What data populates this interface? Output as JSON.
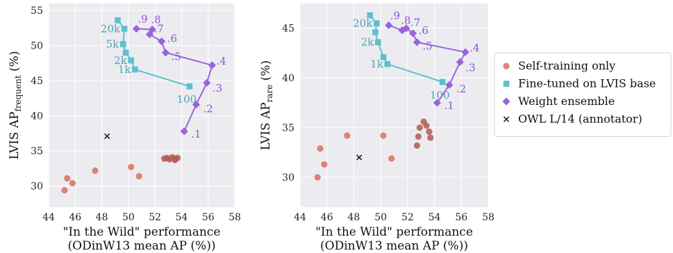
{
  "chart_data": [
    {
      "type": "scatter",
      "xlabel_lines": [
        "\"In the Wild\" performance",
        "(ODinW13 mean AP (%))"
      ],
      "ylabel": "LVIS AP",
      "ylabel_sub": "frequent",
      "ylabel_suffix": " (%)",
      "xlim": [
        44,
        58
      ],
      "ylim": [
        27,
        56
      ],
      "xticks": [
        44,
        46,
        48,
        50,
        52,
        54,
        56,
        58
      ],
      "yticks": [
        30,
        35,
        40,
        45,
        50,
        55
      ],
      "grid": true,
      "series": [
        {
          "name": "Self-training only",
          "marker": "circle",
          "color": "#d9705e",
          "points": [
            {
              "x": 45.2,
              "y": 29.4
            },
            {
              "x": 45.4,
              "y": 31.1
            },
            {
              "x": 45.8,
              "y": 30.4
            },
            {
              "x": 47.5,
              "y": 32.2
            },
            {
              "x": 50.2,
              "y": 32.7
            },
            {
              "x": 50.8,
              "y": 31.4
            },
            {
              "x": 52.7,
              "y": 33.9
            },
            {
              "x": 52.9,
              "y": 34.0
            },
            {
              "x": 53.1,
              "y": 33.8
            },
            {
              "x": 53.3,
              "y": 34.1
            },
            {
              "x": 53.5,
              "y": 33.9
            },
            {
              "x": 53.7,
              "y": 34.0
            },
            {
              "x": 53.5,
              "y": 33.7
            }
          ]
        },
        {
          "name": "Fine-tuned on LVIS base",
          "marker": "square",
          "color": "#5cc0cf",
          "line": true,
          "points": [
            {
              "x": 49.2,
              "y": 53.6,
              "label": ""
            },
            {
              "x": 49.7,
              "y": 52.4,
              "label": "20k"
            },
            {
              "x": 49.6,
              "y": 50.2,
              "label": "5k"
            },
            {
              "x": 49.8,
              "y": 49.0,
              "label": ""
            },
            {
              "x": 50.2,
              "y": 47.9,
              "label": "2k"
            },
            {
              "x": 50.5,
              "y": 46.6,
              "label": "1k"
            },
            {
              "x": 54.6,
              "y": 44.2,
              "label": "100"
            }
          ]
        },
        {
          "name": "Weight ensemble",
          "marker": "diamond",
          "color": "#9a63dc",
          "line": true,
          "points": [
            {
              "x": 50.6,
              "y": 52.4,
              "label": ".9"
            },
            {
              "x": 51.8,
              "y": 52.3,
              "label": ".8"
            },
            {
              "x": 51.6,
              "y": 51.6,
              "label": ".7"
            },
            {
              "x": 52.5,
              "y": 50.6,
              "label": ".6"
            },
            {
              "x": 52.8,
              "y": 49.0,
              "label": ".5"
            },
            {
              "x": 56.3,
              "y": 47.2,
              "label": ".4"
            },
            {
              "x": 55.9,
              "y": 44.7,
              "label": ".3"
            },
            {
              "x": 55.1,
              "y": 41.6,
              "label": ".2"
            },
            {
              "x": 54.2,
              "y": 37.8,
              "label": ".1"
            }
          ]
        },
        {
          "name": "OWL L/14 (annotator)",
          "marker": "x",
          "color": "#111111",
          "points": [
            {
              "x": 48.4,
              "y": 37.1
            }
          ]
        }
      ]
    },
    {
      "type": "scatter",
      "xlabel_lines": [
        "\"In the Wild\" performance",
        "(ODinW13 mean AP (%))"
      ],
      "ylabel": "LVIS AP",
      "ylabel_sub": "rare",
      "ylabel_suffix": " (%)",
      "xlim": [
        44,
        58
      ],
      "ylim": [
        27,
        47.5
      ],
      "xticks": [
        44,
        46,
        48,
        50,
        52,
        54,
        56,
        58
      ],
      "yticks": [
        30,
        35,
        40,
        45
      ],
      "grid": true,
      "series": [
        {
          "name": "Self-training only",
          "marker": "circle",
          "color": "#d9705e",
          "points": [
            {
              "x": 45.3,
              "y": 30.0
            },
            {
              "x": 45.5,
              "y": 32.9
            },
            {
              "x": 45.8,
              "y": 31.3
            },
            {
              "x": 47.5,
              "y": 34.2
            },
            {
              "x": 50.2,
              "y": 34.2
            },
            {
              "x": 50.8,
              "y": 31.9
            },
            {
              "x": 52.7,
              "y": 33.2
            },
            {
              "x": 52.8,
              "y": 34.1
            },
            {
              "x": 52.9,
              "y": 35.0
            },
            {
              "x": 53.2,
              "y": 35.6
            },
            {
              "x": 53.4,
              "y": 35.2
            },
            {
              "x": 53.6,
              "y": 34.6
            },
            {
              "x": 53.7,
              "y": 34.0
            }
          ]
        },
        {
          "name": "Fine-tuned on LVIS base",
          "marker": "square",
          "color": "#5cc0cf",
          "line": true,
          "points": [
            {
              "x": 49.2,
              "y": 46.3,
              "label": ""
            },
            {
              "x": 49.7,
              "y": 45.5,
              "label": "20k"
            },
            {
              "x": 49.6,
              "y": 44.6,
              "label": ""
            },
            {
              "x": 49.8,
              "y": 43.6,
              "label": "2k"
            },
            {
              "x": 50.2,
              "y": 42.1,
              "label": ""
            },
            {
              "x": 50.5,
              "y": 41.4,
              "label": "1k"
            },
            {
              "x": 54.6,
              "y": 39.6,
              "label": "100"
            }
          ]
        },
        {
          "name": "Weight ensemble",
          "marker": "diamond",
          "color": "#9a63dc",
          "line": true,
          "points": [
            {
              "x": 50.6,
              "y": 45.3,
              "label": ".9"
            },
            {
              "x": 51.6,
              "y": 44.8,
              "label": ".8"
            },
            {
              "x": 51.9,
              "y": 45.0,
              "label": ".7"
            },
            {
              "x": 52.4,
              "y": 44.5,
              "label": ".6"
            },
            {
              "x": 52.7,
              "y": 43.6,
              "label": ".5"
            },
            {
              "x": 56.3,
              "y": 42.6,
              "label": ".4"
            },
            {
              "x": 55.9,
              "y": 41.6,
              "label": ".3"
            },
            {
              "x": 55.1,
              "y": 39.3,
              "label": ".2"
            },
            {
              "x": 54.2,
              "y": 37.5,
              "label": ".1"
            }
          ]
        },
        {
          "name": "OWL L/14 (annotator)",
          "marker": "x",
          "color": "#111111",
          "points": [
            {
              "x": 48.4,
              "y": 32.0
            }
          ]
        }
      ]
    }
  ],
  "legend": {
    "entries": [
      {
        "label": "Self-training only",
        "marker": "circle",
        "color": "#d9705e"
      },
      {
        "label": "Fine-tuned on LVIS base",
        "marker": "square",
        "color": "#5cc0cf"
      },
      {
        "label": "Weight ensemble",
        "marker": "diamond",
        "color": "#9a63dc"
      },
      {
        "label": "OWL L/14 (annotator)",
        "marker": "x",
        "color": "#111111"
      }
    ]
  }
}
